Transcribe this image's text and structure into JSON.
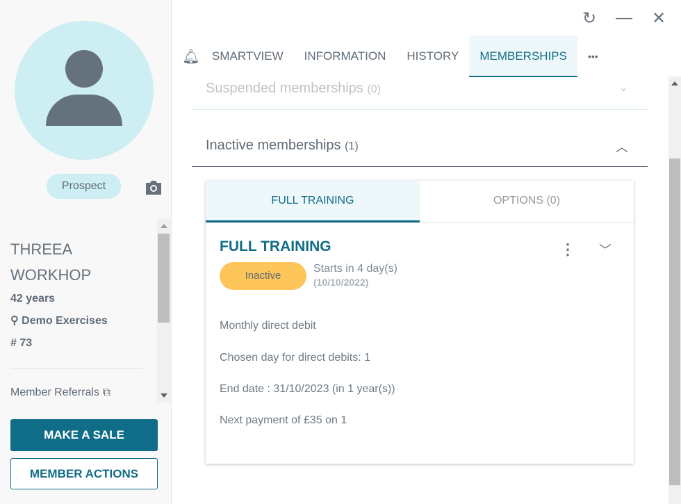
{
  "profile": {
    "status": "Prospect",
    "first_name": "THREEA",
    "last_name": "WORKHOP",
    "age": "42 years",
    "location": "Demo Exercises",
    "number": "# 73",
    "referrals": "Member Referrals"
  },
  "actions": {
    "make_sale": "MAKE A SALE",
    "member_actions": "MEMBER ACTIONS"
  },
  "tabs": [
    "SMARTVIEW",
    "INFORMATION",
    "HISTORY",
    "MEMBERSHIPS"
  ],
  "active_tab": "MEMBERSHIPS",
  "more": "•••",
  "sections": {
    "suspended": {
      "title": "Suspended memberships",
      "count": "(0)"
    },
    "inactive": {
      "title": "Inactive memberships",
      "count": "(1)"
    }
  },
  "card": {
    "tabs": [
      "FULL TRAINING",
      "OPTIONS (0)"
    ],
    "title": "FULL TRAINING",
    "status": "Inactive",
    "starts": "Starts in 4 day(s)",
    "start_date": "(10/10/2022)",
    "details": [
      "Monthly direct debit",
      "Chosen day for direct debits: 1",
      "End date : 31/10/2023 (in 1 year(s))",
      "Next payment of £35 on 1"
    ]
  },
  "colors": {
    "accent": "#106d87",
    "status_inactive": "#fdc55a",
    "avatar_bg": "#cdeef3"
  }
}
